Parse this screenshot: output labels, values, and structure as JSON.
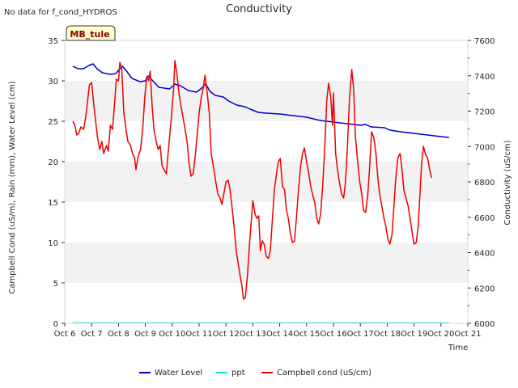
{
  "chart_data": {
    "type": "line",
    "title": "Conductivity",
    "note": "No data for f_cond_HYDROS",
    "site_badge": "MB_tule",
    "xlabel": "Time",
    "ylabel_left": "Campbell Cond (uS/m), Rain (mm), Water Level (cm)",
    "ylabel_right": "Conductivity (uS/cm)",
    "x_ticks": [
      "Oct 6",
      "Oct 7",
      "Oct 8",
      "Oct 9",
      "Oct 10",
      "Oct 11",
      "Oct 12",
      "Oct 13",
      "Oct 14",
      "Oct 15",
      "Oct 16",
      "Oct 17",
      "Oct 18",
      "Oct 19",
      "Oct 20",
      "Oct 21"
    ],
    "xlim": [
      6,
      21
    ],
    "ylim_left": [
      0,
      35
    ],
    "y_ticks_left": [
      0,
      5,
      10,
      15,
      20,
      25,
      30,
      35
    ],
    "ylim_right": [
      6000,
      7600
    ],
    "y_ticks_right": [
      6000,
      6200,
      6400,
      6600,
      6800,
      7000,
      7200,
      7400,
      7600
    ],
    "grid": "horizontal bands",
    "legend_position": "bottom-center",
    "series": [
      {
        "name": "Water Level",
        "color": "#0000cc",
        "axis": "left",
        "points": [
          [
            6.3,
            31.8
          ],
          [
            6.5,
            31.5
          ],
          [
            6.7,
            31.5
          ],
          [
            6.9,
            31.9
          ],
          [
            7.05,
            32.1
          ],
          [
            7.2,
            31.5
          ],
          [
            7.4,
            31.0
          ],
          [
            7.7,
            30.8
          ],
          [
            7.9,
            30.9
          ],
          [
            8.05,
            31.5
          ],
          [
            8.15,
            31.8
          ],
          [
            8.3,
            31.2
          ],
          [
            8.5,
            30.3
          ],
          [
            8.8,
            29.9
          ],
          [
            9.0,
            30.0
          ],
          [
            9.1,
            30.6
          ],
          [
            9.25,
            30.1
          ],
          [
            9.5,
            29.2
          ],
          [
            9.9,
            29.0
          ],
          [
            10.1,
            29.6
          ],
          [
            10.3,
            29.4
          ],
          [
            10.6,
            28.8
          ],
          [
            10.9,
            28.6
          ],
          [
            11.1,
            29.1
          ],
          [
            11.25,
            29.6
          ],
          [
            11.4,
            28.7
          ],
          [
            11.6,
            28.2
          ],
          [
            11.9,
            28.0
          ],
          [
            12.1,
            27.5
          ],
          [
            12.4,
            27.0
          ],
          [
            12.7,
            26.8
          ],
          [
            12.9,
            26.5
          ],
          [
            13.2,
            26.1
          ],
          [
            13.5,
            26.0
          ],
          [
            14.0,
            25.9
          ],
          [
            14.5,
            25.7
          ],
          [
            15.0,
            25.5
          ],
          [
            15.5,
            25.1
          ],
          [
            16.0,
            24.9
          ],
          [
            16.5,
            24.7
          ],
          [
            17.0,
            24.5
          ],
          [
            17.2,
            24.6
          ],
          [
            17.4,
            24.3
          ],
          [
            17.9,
            24.2
          ],
          [
            18.1,
            23.9
          ],
          [
            18.5,
            23.7
          ],
          [
            19.0,
            23.5
          ],
          [
            19.5,
            23.3
          ],
          [
            20.0,
            23.1
          ],
          [
            20.3,
            23.0
          ]
        ]
      },
      {
        "name": "ppt",
        "color": "#00e5e5",
        "axis": "left",
        "points": [
          [
            6.3,
            0.05
          ],
          [
            20.3,
            0.05
          ]
        ]
      },
      {
        "name": "Campbell cond (uS/cm)",
        "color": "#ee0000",
        "axis": "left",
        "points": [
          [
            6.3,
            25.0
          ],
          [
            6.38,
            24.5
          ],
          [
            6.45,
            23.3
          ],
          [
            6.52,
            23.5
          ],
          [
            6.6,
            24.3
          ],
          [
            6.7,
            24.0
          ],
          [
            6.78,
            25.5
          ],
          [
            6.85,
            27.5
          ],
          [
            6.92,
            29.5
          ],
          [
            7.0,
            29.8
          ],
          [
            7.08,
            27.0
          ],
          [
            7.15,
            25.0
          ],
          [
            7.22,
            23.0
          ],
          [
            7.3,
            21.5
          ],
          [
            7.38,
            22.5
          ],
          [
            7.45,
            21.0
          ],
          [
            7.55,
            22.0
          ],
          [
            7.62,
            21.3
          ],
          [
            7.7,
            24.5
          ],
          [
            7.78,
            24.0
          ],
          [
            7.85,
            27.0
          ],
          [
            7.92,
            30.2
          ],
          [
            8.0,
            30.0
          ],
          [
            8.05,
            32.3
          ],
          [
            8.12,
            31.5
          ],
          [
            8.2,
            26.0
          ],
          [
            8.28,
            24.0
          ],
          [
            8.35,
            22.5
          ],
          [
            8.45,
            22.0
          ],
          [
            8.52,
            21.0
          ],
          [
            8.6,
            20.5
          ],
          [
            8.65,
            19.0
          ],
          [
            8.72,
            20.5
          ],
          [
            8.82,
            21.5
          ],
          [
            8.9,
            24.0
          ],
          [
            8.98,
            28.0
          ],
          [
            9.05,
            30.5
          ],
          [
            9.12,
            30.0
          ],
          [
            9.18,
            31.2
          ],
          [
            9.25,
            27.0
          ],
          [
            9.32,
            24.0
          ],
          [
            9.4,
            22.5
          ],
          [
            9.48,
            21.5
          ],
          [
            9.55,
            22.0
          ],
          [
            9.62,
            19.5
          ],
          [
            9.7,
            19.0
          ],
          [
            9.78,
            18.5
          ],
          [
            9.82,
            20.0
          ],
          [
            9.9,
            23.0
          ],
          [
            9.98,
            26.0
          ],
          [
            10.05,
            29.0
          ],
          [
            10.1,
            32.5
          ],
          [
            10.17,
            31.0
          ],
          [
            10.25,
            28.5
          ],
          [
            10.32,
            27.0
          ],
          [
            10.4,
            25.5
          ],
          [
            10.48,
            24.0
          ],
          [
            10.55,
            22.5
          ],
          [
            10.62,
            20.0
          ],
          [
            10.7,
            18.2
          ],
          [
            10.78,
            18.5
          ],
          [
            10.85,
            20.5
          ],
          [
            10.92,
            23.0
          ],
          [
            11.0,
            26.0
          ],
          [
            11.08,
            28.0
          ],
          [
            11.15,
            29.0
          ],
          [
            11.22,
            30.7
          ],
          [
            11.3,
            28.5
          ],
          [
            11.38,
            26.0
          ],
          [
            11.45,
            21.0
          ],
          [
            11.55,
            19.0
          ],
          [
            11.62,
            17.5
          ],
          [
            11.7,
            16.0
          ],
          [
            11.78,
            15.5
          ],
          [
            11.85,
            14.7
          ],
          [
            11.92,
            16.0
          ],
          [
            12.0,
            17.5
          ],
          [
            12.08,
            17.7
          ],
          [
            12.15,
            16.5
          ],
          [
            12.22,
            14.5
          ],
          [
            12.3,
            12.0
          ],
          [
            12.38,
            9.0
          ],
          [
            12.45,
            7.5
          ],
          [
            12.52,
            6.0
          ],
          [
            12.6,
            4.5
          ],
          [
            12.65,
            3.0
          ],
          [
            12.72,
            3.2
          ],
          [
            12.8,
            6.0
          ],
          [
            12.88,
            10.0
          ],
          [
            12.95,
            13.0
          ],
          [
            13.0,
            15.2
          ],
          [
            13.08,
            13.5
          ],
          [
            13.15,
            13.0
          ],
          [
            13.22,
            13.3
          ],
          [
            13.28,
            9.0
          ],
          [
            13.35,
            10.2
          ],
          [
            13.42,
            9.8
          ],
          [
            13.5,
            8.3
          ],
          [
            13.58,
            8.0
          ],
          [
            13.65,
            9.0
          ],
          [
            13.72,
            12.5
          ],
          [
            13.8,
            16.5
          ],
          [
            13.88,
            18.5
          ],
          [
            13.95,
            20.0
          ],
          [
            14.02,
            20.4
          ],
          [
            14.1,
            17.0
          ],
          [
            14.18,
            16.5
          ],
          [
            14.25,
            14.0
          ],
          [
            14.32,
            13.0
          ],
          [
            14.4,
            11.0
          ],
          [
            14.48,
            10.0
          ],
          [
            14.55,
            10.2
          ],
          [
            14.62,
            13.0
          ],
          [
            14.7,
            16.5
          ],
          [
            14.78,
            19.5
          ],
          [
            14.85,
            21.0
          ],
          [
            14.92,
            21.7
          ],
          [
            15.0,
            20.0
          ],
          [
            15.08,
            18.5
          ],
          [
            15.15,
            17.0
          ],
          [
            15.22,
            16.0
          ],
          [
            15.3,
            15.0
          ],
          [
            15.38,
            13.0
          ],
          [
            15.45,
            12.3
          ],
          [
            15.52,
            13.5
          ],
          [
            15.6,
            17.0
          ],
          [
            15.68,
            22.0
          ],
          [
            15.75,
            27.5
          ],
          [
            15.82,
            29.7
          ],
          [
            15.9,
            28.0
          ],
          [
            15.96,
            24.5
          ],
          [
            16.0,
            28.5
          ],
          [
            16.08,
            21.0
          ],
          [
            16.15,
            19.0
          ],
          [
            16.22,
            17.5
          ],
          [
            16.3,
            16.0
          ],
          [
            16.38,
            15.5
          ],
          [
            16.45,
            17.5
          ],
          [
            16.52,
            22.0
          ],
          [
            16.6,
            28.0
          ],
          [
            16.68,
            31.4
          ],
          [
            16.75,
            29.0
          ],
          [
            16.82,
            23.0
          ],
          [
            16.9,
            20.0
          ],
          [
            16.98,
            17.5
          ],
          [
            17.05,
            16.0
          ],
          [
            17.12,
            14.0
          ],
          [
            17.2,
            13.7
          ],
          [
            17.28,
            16.0
          ],
          [
            17.35,
            19.5
          ],
          [
            17.42,
            23.7
          ],
          [
            17.5,
            23.0
          ],
          [
            17.58,
            21.0
          ],
          [
            17.65,
            18.0
          ],
          [
            17.72,
            16.0
          ],
          [
            17.8,
            14.5
          ],
          [
            17.88,
            13.0
          ],
          [
            17.95,
            12.0
          ],
          [
            18.02,
            10.5
          ],
          [
            18.1,
            9.8
          ],
          [
            18.18,
            11.0
          ],
          [
            18.25,
            14.5
          ],
          [
            18.32,
            18.0
          ],
          [
            18.4,
            20.5
          ],
          [
            18.48,
            21.0
          ],
          [
            18.55,
            19.0
          ],
          [
            18.62,
            16.5
          ],
          [
            18.7,
            15.5
          ],
          [
            18.78,
            14.5
          ],
          [
            18.85,
            13.0
          ],
          [
            18.92,
            11.5
          ],
          [
            19.0,
            9.8
          ],
          [
            19.08,
            10.0
          ],
          [
            19.15,
            12.0
          ],
          [
            19.22,
            16.0
          ],
          [
            19.28,
            19.8
          ],
          [
            19.35,
            21.9
          ],
          [
            19.42,
            21.0
          ],
          [
            19.5,
            20.5
          ],
          [
            19.58,
            19.0
          ],
          [
            19.65,
            18.0
          ]
        ]
      }
    ]
  }
}
